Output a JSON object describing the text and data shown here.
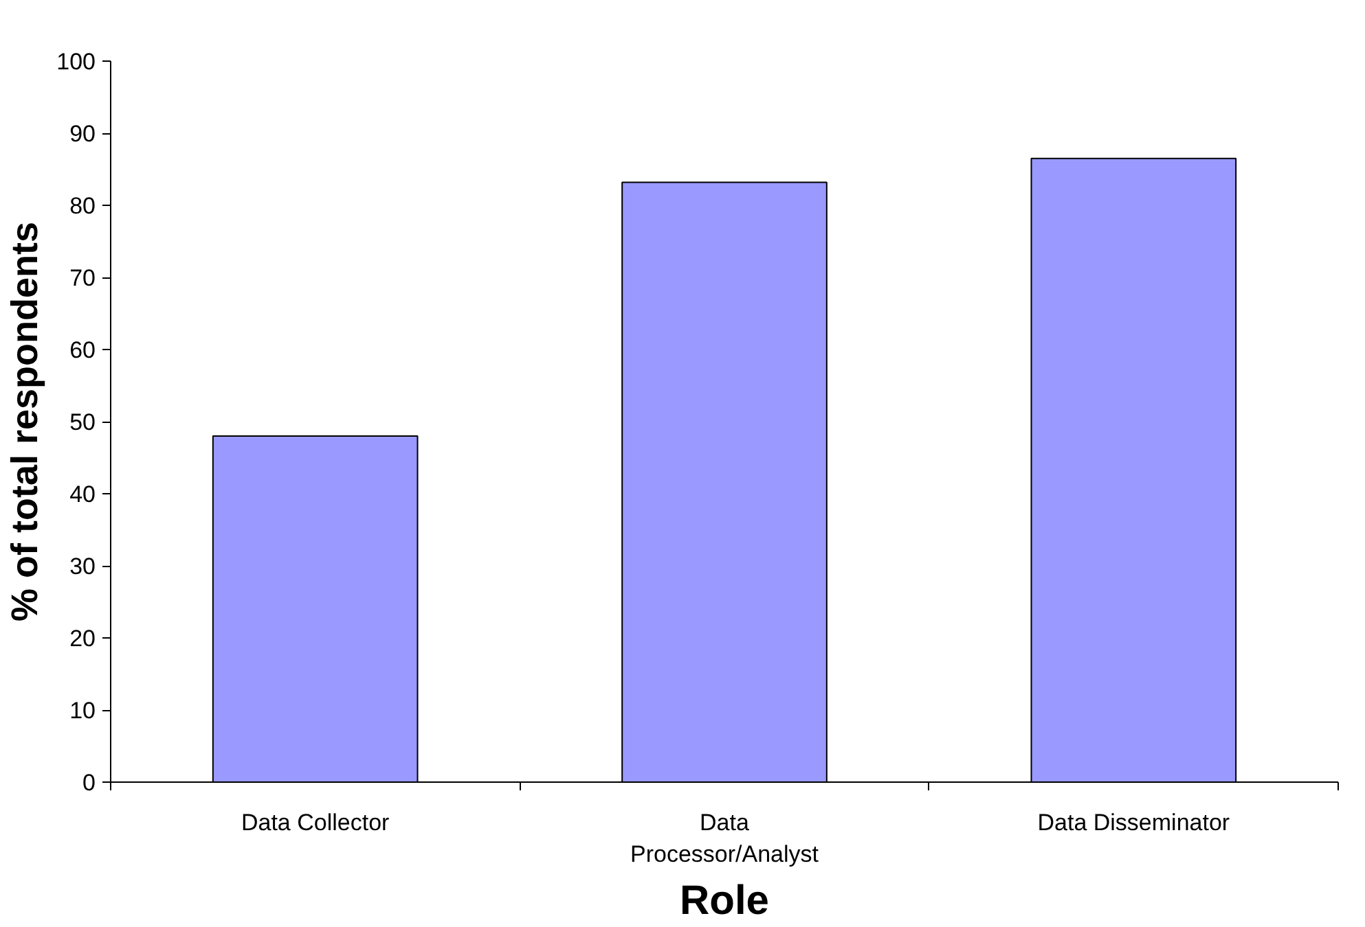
{
  "chart_data": {
    "type": "bar",
    "xlabel": "Role",
    "ylabel": "% of total respondents",
    "categories": [
      "Data Collector",
      "Data\nProcessor/Analyst",
      "Data Disseminator"
    ],
    "values": [
      48,
      83.2,
      86.5
    ],
    "color": "#9999ff",
    "ylim": [
      0,
      100
    ],
    "yticks": [
      0,
      10,
      20,
      30,
      40,
      50,
      60,
      70,
      80,
      90,
      100
    ],
    "grid": false
  }
}
